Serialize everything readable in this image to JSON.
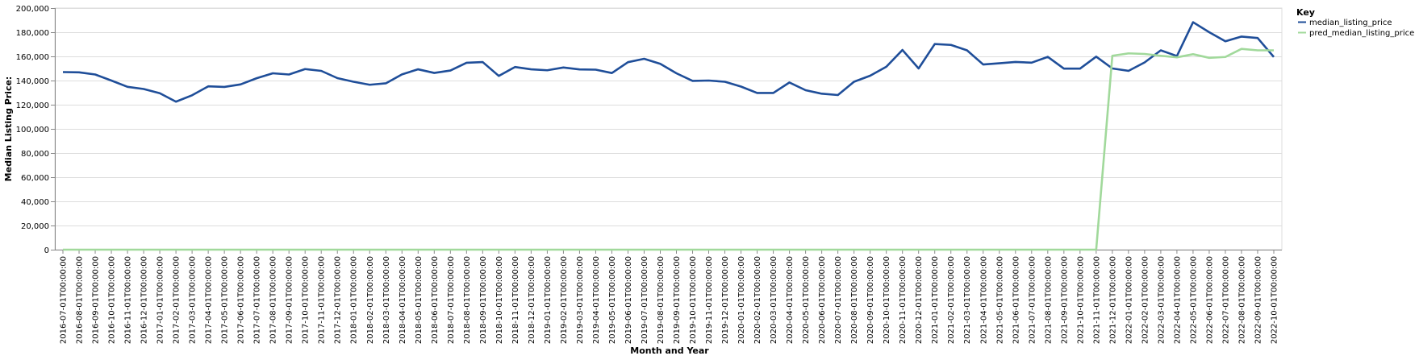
{
  "chart_data": {
    "type": "line",
    "xlabel": "Month and Year",
    "ylabel": "Median Listing Price:",
    "ylim": [
      0,
      200000
    ],
    "yticks": [
      0,
      20000,
      40000,
      60000,
      80000,
      100000,
      120000,
      140000,
      160000,
      180000,
      200000
    ],
    "ytick_labels": [
      "0",
      "20,000",
      "40,000",
      "60,000",
      "80,000",
      "100,000",
      "120,000",
      "140,000",
      "160,000",
      "180,000",
      "200,000"
    ],
    "grid": true,
    "legend": {
      "title": "Key",
      "placement": "top-right"
    },
    "x": [
      "2016-07-01T00:00:00",
      "2016-08-01T00:00:00",
      "2016-09-01T00:00:00",
      "2016-10-01T00:00:00",
      "2016-11-01T00:00:00",
      "2016-12-01T00:00:00",
      "2017-01-01T00:00:00",
      "2017-02-01T00:00:00",
      "2017-03-01T00:00:00",
      "2017-04-01T00:00:00",
      "2017-05-01T00:00:00",
      "2017-06-01T00:00:00",
      "2017-07-01T00:00:00",
      "2017-08-01T00:00:00",
      "2017-09-01T00:00:00",
      "2017-10-01T00:00:00",
      "2017-11-01T00:00:00",
      "2017-12-01T00:00:00",
      "2018-01-01T00:00:00",
      "2018-02-01T00:00:00",
      "2018-03-01T00:00:00",
      "2018-04-01T00:00:00",
      "2018-05-01T00:00:00",
      "2018-06-01T00:00:00",
      "2018-07-01T00:00:00",
      "2018-08-01T00:00:00",
      "2018-09-01T00:00:00",
      "2018-10-01T00:00:00",
      "2018-11-01T00:00:00",
      "2018-12-01T00:00:00",
      "2019-01-01T00:00:00",
      "2019-02-01T00:00:00",
      "2019-03-01T00:00:00",
      "2019-04-01T00:00:00",
      "2019-05-01T00:00:00",
      "2019-06-01T00:00:00",
      "2019-07-01T00:00:00",
      "2019-08-01T00:00:00",
      "2019-09-01T00:00:00",
      "2019-10-01T00:00:00",
      "2019-11-01T00:00:00",
      "2019-12-01T00:00:00",
      "2020-01-01T00:00:00",
      "2020-02-01T00:00:00",
      "2020-03-01T00:00:00",
      "2020-04-01T00:00:00",
      "2020-05-01T00:00:00",
      "2020-06-01T00:00:00",
      "2020-07-01T00:00:00",
      "2020-08-01T00:00:00",
      "2020-09-01T00:00:00",
      "2020-10-01T00:00:00",
      "2020-11-01T00:00:00",
      "2020-12-01T00:00:00",
      "2021-01-01T00:00:00",
      "2021-02-01T00:00:00",
      "2021-03-01T00:00:00",
      "2021-04-01T00:00:00",
      "2021-05-01T00:00:00",
      "2021-06-01T00:00:00",
      "2021-07-01T00:00:00",
      "2021-08-01T00:00:00",
      "2021-09-01T00:00:00",
      "2021-10-01T00:00:00",
      "2021-11-01T00:00:00",
      "2021-12-01T00:00:00",
      "2022-01-01T00:00:00",
      "2022-02-01T00:00:00",
      "2022-03-01T00:00:00",
      "2022-04-01T00:00:00",
      "2022-05-01T00:00:00",
      "2022-06-01T00:00:00",
      "2022-07-01T00:00:00",
      "2022-08-01T00:00:00",
      "2022-09-01T00:00:00",
      "2022-10-01T00:00:00"
    ],
    "series": [
      {
        "name": "median_listing_price",
        "color": "#1f4e99",
        "values": [
          147000,
          146800,
          145000,
          140000,
          134800,
          133000,
          129500,
          122500,
          127800,
          135200,
          134700,
          136800,
          141900,
          146000,
          145000,
          149500,
          148000,
          142000,
          139000,
          136500,
          137700,
          145100,
          149300,
          146300,
          148300,
          154700,
          155300,
          143800,
          151200,
          149300,
          148500,
          150800,
          149200,
          149000,
          146200,
          155200,
          158000,
          153800,
          146000,
          139700,
          140000,
          139000,
          135000,
          129700,
          129700,
          138400,
          132000,
          129100,
          128000,
          139000,
          144000,
          151400,
          165300,
          150000,
          170200,
          169500,
          165000,
          153300,
          154300,
          155400,
          154800,
          159600,
          149900,
          149900,
          159800,
          150000,
          148000,
          155000,
          165000,
          160300,
          188300,
          180000,
          172500,
          176400,
          175200,
          159500
        ]
      },
      {
        "name": "pred_median_listing_price",
        "color": "#a1d99b",
        "values": [
          0,
          0,
          0,
          0,
          0,
          0,
          0,
          0,
          0,
          0,
          0,
          0,
          0,
          0,
          0,
          0,
          0,
          0,
          0,
          0,
          0,
          0,
          0,
          0,
          0,
          0,
          0,
          0,
          0,
          0,
          0,
          0,
          0,
          0,
          0,
          0,
          0,
          0,
          0,
          0,
          0,
          0,
          0,
          0,
          0,
          0,
          0,
          0,
          0,
          0,
          0,
          0,
          0,
          0,
          0,
          0,
          0,
          0,
          0,
          0,
          0,
          0,
          0,
          0,
          0,
          160500,
          162500,
          162000,
          160500,
          159200,
          161800,
          158800,
          159500,
          166200,
          165000,
          165000
        ]
      }
    ]
  }
}
